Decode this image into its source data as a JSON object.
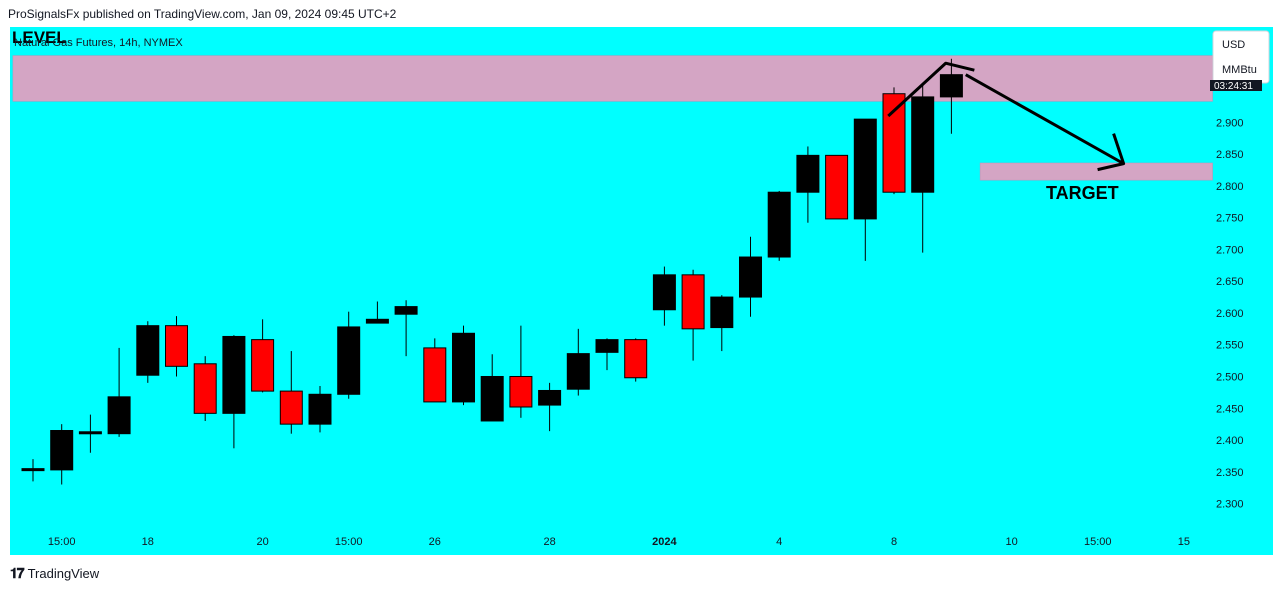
{
  "header": {
    "published": "ProSignalsFx published on TradingView.com, Jan 09, 2024 09:45 UTC+2"
  },
  "footer": {
    "logo": "𝟏𝟕",
    "brand": "TradingView"
  },
  "legend": {
    "level_label": "LEVEL",
    "symbol": "Natural Gas Futures, 14h, NYMEX"
  },
  "currency_box": {
    "currency": "USD",
    "unit": "MMBtu"
  },
  "price_tag": "03:24:31",
  "annotations": {
    "target_label": "TARGET"
  },
  "colors": {
    "background": "#00ffff",
    "zone": "#d4a5c4",
    "bull": "#000000",
    "bear": "#ff0000"
  },
  "chart_data": {
    "type": "candlestick",
    "ylim": [
      2.26,
      3.05
    ],
    "yticks": [
      2.3,
      2.35,
      2.4,
      2.45,
      2.5,
      2.55,
      2.6,
      2.65,
      2.7,
      2.75,
      2.8,
      2.85,
      2.9
    ],
    "ytick_labels": [
      "2.300",
      "2.350",
      "2.400",
      "2.450",
      "2.500",
      "2.550",
      "2.600",
      "2.650",
      "2.700",
      "2.750",
      "2.800",
      "2.850",
      "2.900"
    ],
    "xticks": [
      {
        "i": 1,
        "label": "15:00",
        "bold": false
      },
      {
        "i": 4,
        "label": "18",
        "bold": false
      },
      {
        "i": 8,
        "label": "20",
        "bold": false
      },
      {
        "i": 11,
        "label": "15:00",
        "bold": false
      },
      {
        "i": 14,
        "label": "26",
        "bold": false
      },
      {
        "i": 18,
        "label": "28",
        "bold": false
      },
      {
        "i": 22,
        "label": "2024",
        "bold": true
      },
      {
        "i": 26,
        "label": "4",
        "bold": false
      },
      {
        "i": 30,
        "label": "8",
        "bold": false
      },
      {
        "i": 34.1,
        "label": "10",
        "bold": false
      },
      {
        "i": 37.1,
        "label": "15:00",
        "bold": false
      },
      {
        "i": 40.1,
        "label": "15",
        "bold": false
      }
    ],
    "candles": [
      {
        "o": 2.355,
        "h": 2.37,
        "l": 2.335,
        "c": 2.355
      },
      {
        "o": 2.353,
        "h": 2.425,
        "l": 2.33,
        "c": 2.415
      },
      {
        "o": 2.41,
        "h": 2.44,
        "l": 2.38,
        "c": 2.413
      },
      {
        "o": 2.41,
        "h": 2.545,
        "l": 2.405,
        "c": 2.468
      },
      {
        "o": 2.502,
        "h": 2.587,
        "l": 2.49,
        "c": 2.58
      },
      {
        "o": 2.58,
        "h": 2.595,
        "l": 2.5,
        "c": 2.516
      },
      {
        "o": 2.52,
        "h": 2.532,
        "l": 2.43,
        "c": 2.442
      },
      {
        "o": 2.442,
        "h": 2.565,
        "l": 2.387,
        "c": 2.563
      },
      {
        "o": 2.558,
        "h": 2.59,
        "l": 2.475,
        "c": 2.477
      },
      {
        "o": 2.477,
        "h": 2.54,
        "l": 2.41,
        "c": 2.425
      },
      {
        "o": 2.425,
        "h": 2.485,
        "l": 2.412,
        "c": 2.472
      },
      {
        "o": 2.472,
        "h": 2.602,
        "l": 2.465,
        "c": 2.578
      },
      {
        "o": 2.584,
        "h": 2.618,
        "l": 2.584,
        "c": 2.59
      },
      {
        "o": 2.598,
        "h": 2.62,
        "l": 2.532,
        "c": 2.61
      },
      {
        "o": 2.545,
        "h": 2.56,
        "l": 2.46,
        "c": 2.46
      },
      {
        "o": 2.46,
        "h": 2.58,
        "l": 2.455,
        "c": 2.568
      },
      {
        "o": 2.43,
        "h": 2.535,
        "l": 2.43,
        "c": 2.5
      },
      {
        "o": 2.5,
        "h": 2.58,
        "l": 2.435,
        "c": 2.452
      },
      {
        "o": 2.455,
        "h": 2.49,
        "l": 2.414,
        "c": 2.478
      },
      {
        "o": 2.48,
        "h": 2.575,
        "l": 2.47,
        "c": 2.536
      },
      {
        "o": 2.538,
        "h": 2.56,
        "l": 2.51,
        "c": 2.558
      },
      {
        "o": 2.558,
        "h": 2.56,
        "l": 2.492,
        "c": 2.498
      },
      {
        "o": 2.605,
        "h": 2.673,
        "l": 2.58,
        "c": 2.66
      },
      {
        "o": 2.66,
        "h": 2.668,
        "l": 2.525,
        "c": 2.575
      },
      {
        "o": 2.577,
        "h": 2.628,
        "l": 2.54,
        "c": 2.625
      },
      {
        "o": 2.625,
        "h": 2.72,
        "l": 2.594,
        "c": 2.688
      },
      {
        "o": 2.688,
        "h": 2.792,
        "l": 2.682,
        "c": 2.79
      },
      {
        "o": 2.79,
        "h": 2.862,
        "l": 2.742,
        "c": 2.848
      },
      {
        "o": 2.848,
        "h": 2.848,
        "l": 2.748,
        "c": 2.748
      },
      {
        "o": 2.748,
        "h": 2.905,
        "l": 2.682,
        "c": 2.905
      },
      {
        "o": 2.945,
        "h": 2.955,
        "l": 2.787,
        "c": 2.79
      },
      {
        "o": 2.79,
        "h": 2.96,
        "l": 2.695,
        "c": 2.94
      },
      {
        "o": 2.94,
        "h": 3.0,
        "l": 2.882,
        "c": 2.975
      }
    ],
    "zones": [
      {
        "y0": 2.933,
        "y1": 3.005,
        "i0": -0.7,
        "i1": 41.1
      },
      {
        "y0": 2.809,
        "y1": 2.836,
        "i0": 33.0,
        "i1": 41.1
      }
    ],
    "drawings": {
      "peak_lines": [
        [
          29.8,
          2.91
        ],
        [
          31.8,
          2.993
        ],
        [
          32.8,
          2.982
        ]
      ],
      "target_arrow": [
        [
          32.5,
          2.975
        ],
        [
          38.0,
          2.835
        ]
      ]
    }
  }
}
